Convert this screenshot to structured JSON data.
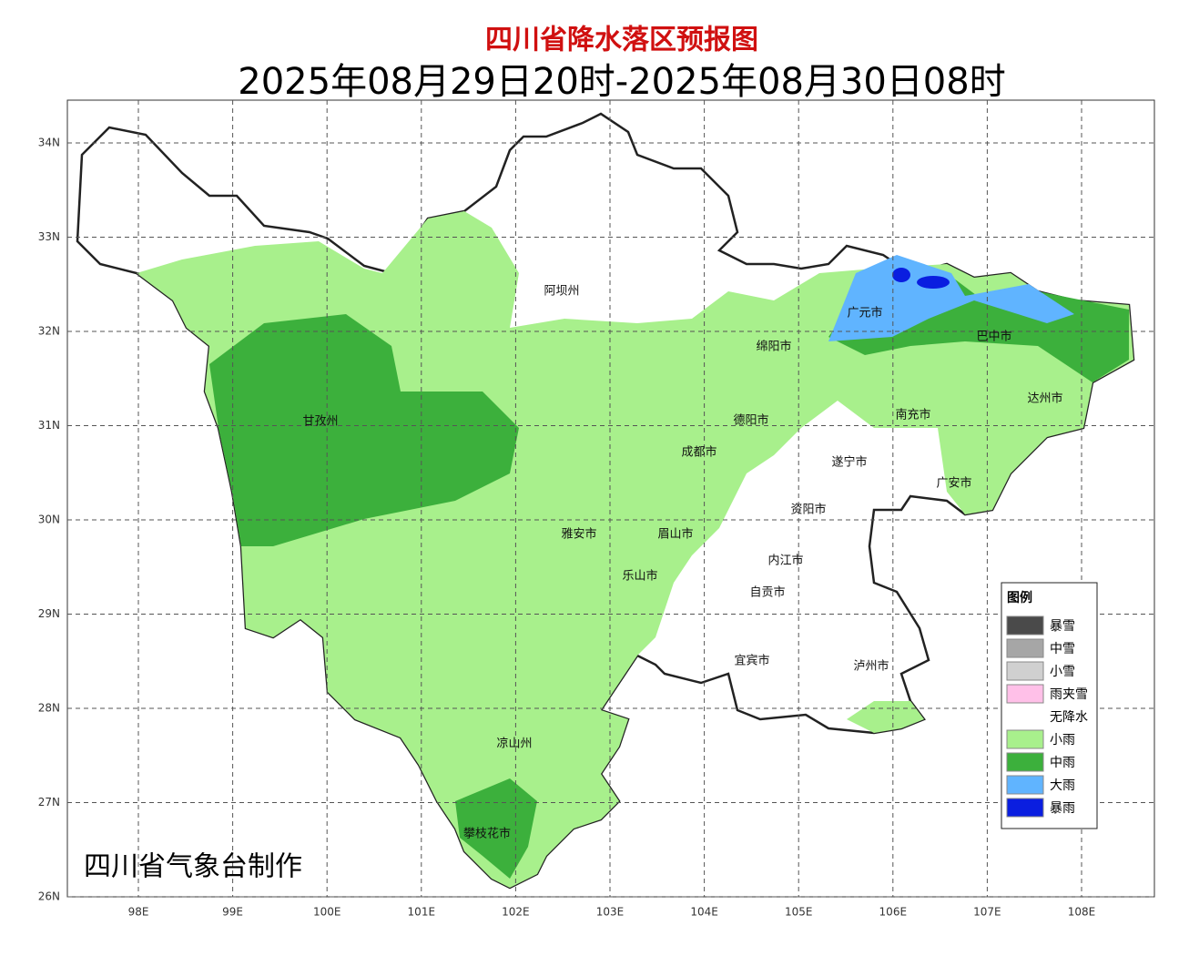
{
  "header": {
    "title": "四川省降水落区预报图",
    "subtitle": "2025年08月29日20时-2025年08月30日08时"
  },
  "map": {
    "lat_labels": [
      "34N",
      "33N",
      "32N",
      "31N",
      "30N",
      "29N",
      "28N",
      "27N",
      "26N"
    ],
    "lon_labels": [
      "98E",
      "99E",
      "100E",
      "101E",
      "102E",
      "103E",
      "104E",
      "105E",
      "106E",
      "107E",
      "108E"
    ],
    "regions": [
      "阿坝州",
      "甘孜州",
      "绵阳市",
      "广元市",
      "巴中市",
      "达州市",
      "南充市",
      "德阳市",
      "成都市",
      "遂宁市",
      "广安市",
      "资阳市",
      "雅安市",
      "眉山市",
      "内江市",
      "自贡市",
      "乐山市",
      "宜宾市",
      "泸州市",
      "凉山州",
      "攀枝花市"
    ]
  },
  "legend": {
    "title": "图例",
    "items": [
      {
        "label": "暴雪",
        "color": "#4a4a4a"
      },
      {
        "label": "中雪",
        "color": "#a6a6a6"
      },
      {
        "label": "小雪",
        "color": "#d0d0d0"
      },
      {
        "label": "雨夹雪",
        "color": "#ffc0e8"
      },
      {
        "label": "无降水",
        "color": "#ffffff"
      },
      {
        "label": "小雨",
        "color": "#a8f08c"
      },
      {
        "label": "中雨",
        "color": "#3cb03c"
      },
      {
        "label": "大雨",
        "color": "#60b4ff"
      },
      {
        "label": "暴雨",
        "color": "#0a1ee0"
      }
    ]
  },
  "credit": "四川省气象台制作"
}
